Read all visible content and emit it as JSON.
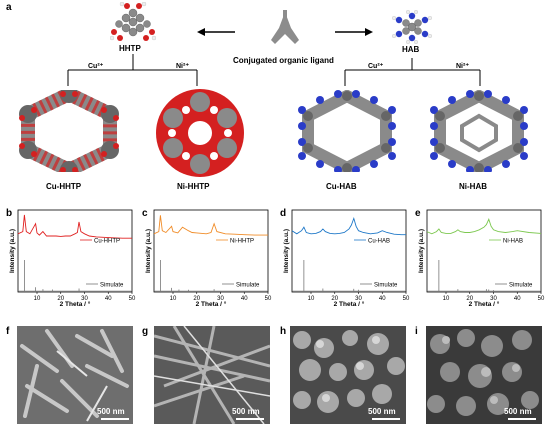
{
  "panel_labels": {
    "a": "a",
    "b": "b",
    "c": "c",
    "d": "d",
    "e": "e",
    "f": "f",
    "g": "g",
    "h": "h",
    "i": "i"
  },
  "scheme": {
    "hhtp_label": "HHTP",
    "hab_label": "HAB",
    "ligand_caption": "Conjugated organic ligand",
    "cu_ion": "Cu²⁺",
    "ni_ion": "Ni²⁺",
    "frameworks": [
      "Cu-HHTP",
      "Ni-HHTP",
      "Cu-HAB",
      "Ni-HAB"
    ]
  },
  "xrd_common": {
    "ylabel": "Intensity (a.u.)",
    "xlabel": "2 Theta / °",
    "xticks": [
      "10",
      "20",
      "30",
      "40",
      "50"
    ],
    "simulate_label": "Simulate"
  },
  "chart_data": [
    {
      "type": "line",
      "panel": "b",
      "xlabel": "2 Theta / °",
      "ylabel": "Intensity (a.u.)",
      "xlim": [
        2,
        50
      ],
      "series": [
        {
          "name": "Cu-HHTP",
          "color": "#e02020",
          "x": [
            2,
            4,
            4.7,
            5.5,
            7,
            9.4,
            10,
            11,
            12.5,
            14,
            16,
            18,
            20,
            22,
            24,
            26,
            27,
            27.7,
            28.5,
            30,
            32,
            35,
            38,
            42,
            46,
            50
          ],
          "y": [
            0.55,
            0.6,
            0.98,
            0.6,
            0.55,
            0.78,
            0.57,
            0.52,
            0.6,
            0.5,
            0.5,
            0.5,
            0.49,
            0.5,
            0.5,
            0.55,
            0.58,
            0.82,
            0.6,
            0.55,
            0.5,
            0.48,
            0.47,
            0.46,
            0.45,
            0.45
          ]
        },
        {
          "name": "Simulate",
          "color": "#777777",
          "x": [
            4.7,
            9.4,
            12.5,
            16.5,
            27.7
          ],
          "y": [
            1.0,
            0.12,
            0.06,
            0.05,
            0.08
          ]
        }
      ]
    },
    {
      "type": "line",
      "panel": "c",
      "xlabel": "2 Theta / °",
      "ylabel": "Intensity (a.u.)",
      "xlim": [
        2,
        50
      ],
      "series": [
        {
          "name": "Ni-HHTP",
          "color": "#f08c28",
          "x": [
            2,
            4,
            4.7,
            5.5,
            7,
            9.4,
            10,
            12,
            14,
            16.5,
            18,
            20,
            24,
            26,
            27.3,
            28.5,
            32,
            36,
            40,
            45,
            50
          ],
          "y": [
            0.55,
            0.6,
            0.97,
            0.62,
            0.58,
            0.72,
            0.6,
            0.57,
            0.7,
            0.62,
            0.58,
            0.57,
            0.55,
            0.58,
            0.78,
            0.6,
            0.55,
            0.54,
            0.53,
            0.52,
            0.52
          ]
        },
        {
          "name": "Simulate",
          "color": "#777777",
          "x": [
            4.7,
            9.4,
            12.5,
            16.5,
            27.3
          ],
          "y": [
            1.0,
            0.1,
            0.05,
            0.04,
            0.06
          ]
        }
      ]
    },
    {
      "type": "line",
      "panel": "d",
      "xlabel": "2 Theta / °",
      "ylabel": "Intensity (a.u.)",
      "xlim": [
        2,
        50
      ],
      "series": [
        {
          "name": "Cu-HAB",
          "color": "#1e78c8",
          "x": [
            2,
            4,
            6,
            7,
            8,
            10,
            12,
            14,
            15,
            16,
            18,
            20,
            22,
            24,
            26,
            27,
            28,
            29,
            30,
            32,
            35,
            38,
            40,
            42,
            45,
            48,
            50
          ],
          "y": [
            0.62,
            0.55,
            0.62,
            0.7,
            0.58,
            0.55,
            0.56,
            0.6,
            0.66,
            0.6,
            0.56,
            0.55,
            0.56,
            0.58,
            0.66,
            0.75,
            0.9,
            0.72,
            0.62,
            0.58,
            0.55,
            0.57,
            0.62,
            0.58,
            0.54,
            0.53,
            0.53
          ]
        },
        {
          "name": "Simulate",
          "color": "#777777",
          "x": [
            7,
            15,
            28,
            30
          ],
          "y": [
            1.0,
            0.08,
            0.07,
            0.04
          ]
        }
      ]
    },
    {
      "type": "line",
      "panel": "e",
      "xlabel": "2 Theta / °",
      "ylabel": "Intensity (a.u.)",
      "xlim": [
        2,
        50
      ],
      "series": [
        {
          "name": "Ni-HAB",
          "color": "#7dc850",
          "x": [
            2,
            4,
            6,
            7,
            8,
            10,
            12,
            14,
            15,
            16,
            18,
            20,
            22,
            24,
            26,
            27,
            28,
            29,
            30,
            32,
            35,
            38,
            40,
            45,
            50
          ],
          "y": [
            0.6,
            0.55,
            0.6,
            0.66,
            0.58,
            0.56,
            0.56,
            0.6,
            0.64,
            0.6,
            0.58,
            0.58,
            0.6,
            0.64,
            0.7,
            0.76,
            0.88,
            0.72,
            0.64,
            0.6,
            0.58,
            0.6,
            0.62,
            0.58,
            0.56
          ]
        },
        {
          "name": "Simulate",
          "color": "#777777",
          "x": [
            7,
            15,
            27,
            28,
            30
          ],
          "y": [
            1.0,
            0.06,
            0.06,
            0.05,
            0.03
          ]
        }
      ]
    }
  ],
  "sem": {
    "scale_label": "500 nm"
  },
  "colors": {
    "carbon": "#8a8a8a",
    "oxygen": "#d42020",
    "nitrogen": "#2a3cc8",
    "hydrogen": "#f0f0f0",
    "copper": "#4a4a4a"
  }
}
